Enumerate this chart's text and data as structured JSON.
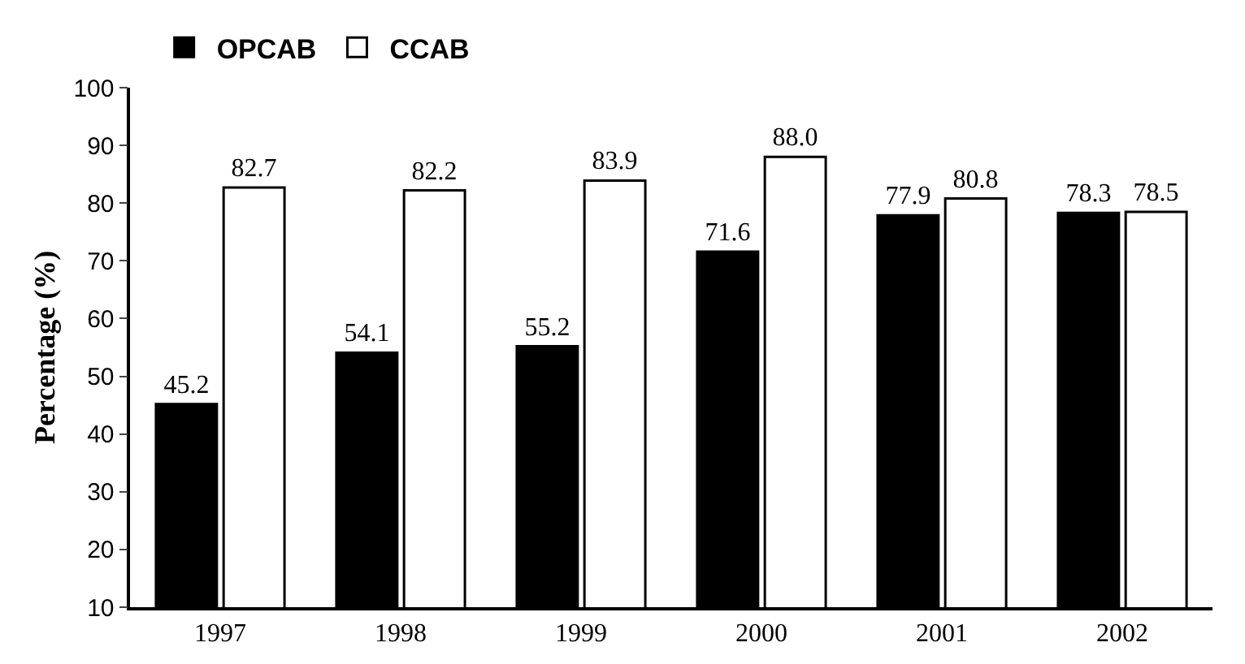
{
  "chart_data": {
    "type": "bar",
    "ylabel": "Percentage (%)",
    "categories": [
      "1997",
      "1998",
      "1999",
      "2000",
      "2001",
      "2002"
    ],
    "series": [
      {
        "name": "OPCAB",
        "color": "#000000",
        "values": [
          45.2,
          54.1,
          55.2,
          71.6,
          77.9,
          78.3
        ],
        "value_labels": [
          "45.2",
          "54.1",
          "55.2",
          "71.6",
          "77.9",
          "78.3"
        ]
      },
      {
        "name": "CCAB",
        "color": "#ffffff",
        "values": [
          82.7,
          82.2,
          83.9,
          88.0,
          80.8,
          78.5
        ],
        "value_labels": [
          "82.7",
          "82.2",
          "83.9",
          "88.0",
          "80.8",
          "78.5"
        ]
      }
    ],
    "ylim": [
      10,
      100
    ],
    "yticks": [
      10,
      20,
      30,
      40,
      50,
      60,
      70,
      80,
      90,
      100
    ],
    "grid": false,
    "legend": "top left"
  }
}
